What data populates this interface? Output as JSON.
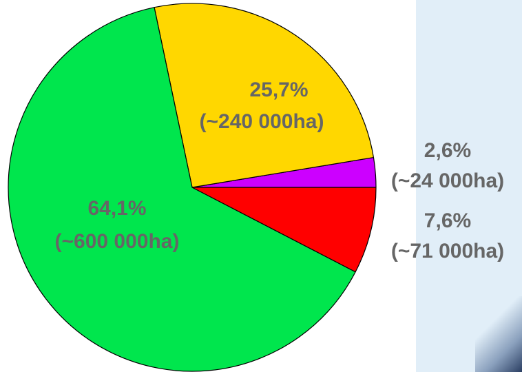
{
  "chart_data": {
    "type": "pie",
    "start_angle_deg": 0,
    "direction": "counterclockwise",
    "slices": [
      {
        "percent": 2.6,
        "label": "2,6%",
        "sublabel": "(~24 000ha)",
        "color": "#cc00ff"
      },
      {
        "percent": 25.7,
        "label": "25,7%",
        "sublabel": "(~240 000ha)",
        "color": "#ffd700"
      },
      {
        "percent": 64.1,
        "label": "64,1%",
        "sublabel": "(~600 000ha)",
        "color": "#00e64d"
      },
      {
        "percent": 7.6,
        "label": "7,6%",
        "sublabel": "(~71 000ha)",
        "color": "#ff0000"
      }
    ],
    "legend": "none"
  },
  "colors": {
    "label_text": "#666666",
    "slice_outline": "#000000",
    "background_panel": "#e1eef8"
  }
}
